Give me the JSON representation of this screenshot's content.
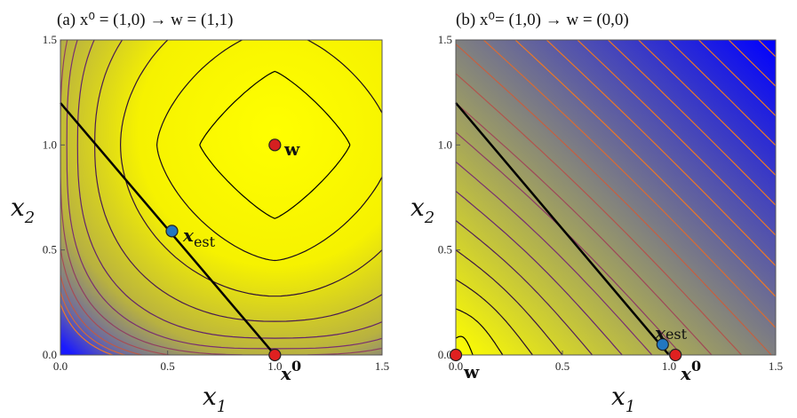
{
  "chart_data": [
    {
      "type": "contour",
      "title": "(a) x⁰ = (1,0) → w = (1,1)",
      "xlabel": "x₁",
      "ylabel": "x₂",
      "xlim": [
        0,
        1.5
      ],
      "ylim": [
        0,
        1.5
      ],
      "xticks": [
        "0.0",
        "0.5",
        "1.0",
        "1.5"
      ],
      "yticks": [
        "0.0",
        "0.5",
        "1.0",
        "1.5"
      ],
      "colormap": {
        "low": "#0000ff",
        "high": "#ffff00"
      },
      "constraint_line": [
        [
          0,
          1.2
        ],
        [
          1.0,
          0.0
        ]
      ],
      "points": [
        {
          "label": "w",
          "x": 1.0,
          "y": 1.0,
          "color": "#d42020"
        },
        {
          "label": "x⁰",
          "x": 1.0,
          "y": 0.0,
          "color": "#e02020"
        },
        {
          "label": "x_est",
          "x": 0.52,
          "y": 0.59,
          "color": "#2277c0"
        }
      ]
    },
    {
      "type": "contour",
      "title": "(b) x⁰= (1,0) → w = (0,0)",
      "xlabel": "x₁",
      "ylabel": "x₂",
      "xlim": [
        0,
        1.5
      ],
      "ylim": [
        0,
        1.5
      ],
      "xticks": [
        "0.0",
        "0.5",
        "1.0",
        "1.5"
      ],
      "yticks": [
        "0.0",
        "0.5",
        "1.0",
        "1.5"
      ],
      "colormap": {
        "low": "#0000ff",
        "high": "#ffff00"
      },
      "constraint_line": [
        [
          0,
          1.2
        ],
        [
          1.0,
          0.0
        ]
      ],
      "points": [
        {
          "label": "w",
          "x": 0.0,
          "y": 0.0,
          "color": "#e02020"
        },
        {
          "label": "x⁰",
          "x": 1.03,
          "y": 0.0,
          "color": "#e02020"
        },
        {
          "label": "x_est",
          "x": 0.97,
          "y": 0.05,
          "color": "#2277c0"
        }
      ]
    }
  ],
  "text": {
    "x_sym": "x",
    "sub1": "1",
    "sub2": "2",
    "w_sym": "w",
    "x0_sym": "x",
    "x0_sup": "0",
    "est_sub": "est"
  }
}
